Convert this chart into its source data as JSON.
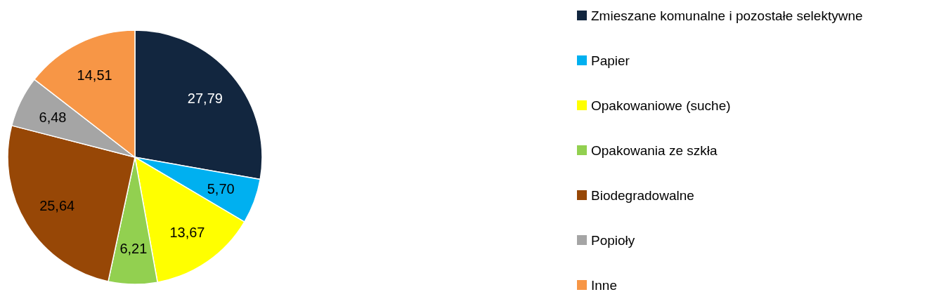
{
  "chart_data": {
    "type": "pie",
    "categories": [
      "Zmieszane komunalne i pozostałe selektywne",
      "Papier",
      "Opakowaniowe (suche)",
      "Opakowania ze szkła",
      "Biodegradowalne",
      "Popioły",
      "Inne"
    ],
    "values": [
      27.79,
      5.7,
      13.67,
      6.21,
      25.64,
      6.48,
      14.51
    ],
    "colors": [
      "#12263f",
      "#00b0f0",
      "#ffff00",
      "#92d050",
      "#974706",
      "#a5a5a5",
      "#f79646"
    ],
    "value_labels": [
      "27,79",
      "5,70",
      "13,67",
      "6,21",
      "25,64",
      "6,48",
      "14,51"
    ],
    "legend": "right"
  }
}
